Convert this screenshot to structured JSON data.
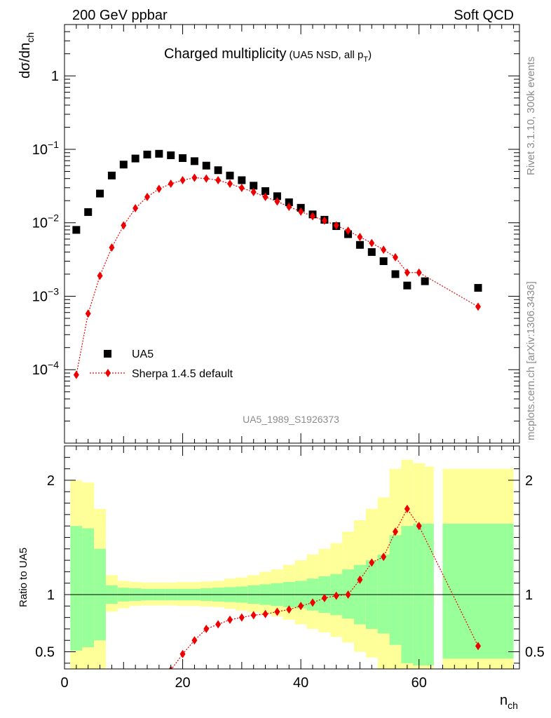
{
  "header": {
    "energy_label": "200 GeV ppbar",
    "category_label": "Soft QCD"
  },
  "side": {
    "rivet_label": "Rivet 3.1.10,  300k events",
    "source_label": "mcplots.cern.ch [arXiv:1306.3436]"
  },
  "chart_data": {
    "type": "scatter",
    "title": "Charged multiplicity",
    "subtitle": "(UA5 NSD, all p",
    "subtitle_sub": "T",
    "subtitle_close": ")",
    "analysis_id": "UA5_1989_S1926373",
    "xlabel_main": "n",
    "xlabel_sub": "ch",
    "ylabel_main": "dσ/dn",
    "ylabel_sub": "ch",
    "ratio_ylabel": "Ratio to UA5",
    "xlim": [
      0,
      77
    ],
    "ylim_log": [
      1e-05,
      5
    ],
    "ratio_ylim": [
      0.35,
      2.3
    ],
    "x_ticks": [
      0,
      20,
      40,
      60
    ],
    "x_tick_labels": [
      "0",
      "20",
      "40",
      "60"
    ],
    "y_ticks": [
      {
        "value": 0.0001,
        "base": "10",
        "exp": "−4"
      },
      {
        "value": 0.001,
        "base": "10",
        "exp": "−3"
      },
      {
        "value": 0.01,
        "base": "10",
        "exp": "−2"
      },
      {
        "value": 0.1,
        "base": "10",
        "exp": "−1"
      },
      {
        "value": 1,
        "label": "1"
      }
    ],
    "ratio_ticks": [
      {
        "value": 0.5,
        "label": "0.5"
      },
      {
        "value": 1,
        "label": "1"
      },
      {
        "value": 2,
        "label": "2"
      }
    ],
    "legend_position": "bottom-left",
    "series": [
      {
        "name": "UA5",
        "style": "square-marker",
        "color": "#000000",
        "x": [
          2,
          4,
          6,
          8,
          10,
          12,
          14,
          16,
          18,
          20,
          22,
          24,
          26,
          28,
          30,
          32,
          34,
          36,
          38,
          40,
          42,
          44,
          46,
          48,
          50,
          52,
          54,
          56,
          58,
          61,
          70
        ],
        "y": [
          0.008,
          0.014,
          0.025,
          0.044,
          0.062,
          0.075,
          0.085,
          0.087,
          0.083,
          0.076,
          0.069,
          0.06,
          0.052,
          0.044,
          0.038,
          0.032,
          0.027,
          0.023,
          0.019,
          0.016,
          0.013,
          0.011,
          0.009,
          0.007,
          0.005,
          0.004,
          0.003,
          0.002,
          0.0014,
          0.0016,
          0.0013
        ]
      },
      {
        "name": "Sherpa 1.4.5 default",
        "style": "diamond-dotted-line",
        "color": "#ee0000",
        "x": [
          2,
          4,
          6,
          8,
          10,
          12,
          14,
          16,
          18,
          20,
          22,
          24,
          26,
          28,
          30,
          32,
          34,
          36,
          38,
          40,
          42,
          44,
          46,
          48,
          50,
          52,
          54,
          56,
          58,
          60,
          70
        ],
        "y": [
          8.5e-05,
          0.00058,
          0.0019,
          0.0046,
          0.0092,
          0.0158,
          0.0225,
          0.029,
          0.034,
          0.038,
          0.041,
          0.04,
          0.038,
          0.034,
          0.0298,
          0.0262,
          0.0225,
          0.0195,
          0.0165,
          0.0142,
          0.0123,
          0.0107,
          0.0092,
          0.0078,
          0.0064,
          0.0053,
          0.0043,
          0.0034,
          0.0021,
          0.0021,
          0.00072
        ]
      }
    ],
    "ratio": {
      "x": [
        18,
        20,
        22,
        24,
        26,
        28,
        30,
        32,
        34,
        36,
        38,
        40,
        42,
        44,
        46,
        48,
        50,
        52,
        54,
        56,
        58,
        60,
        70
      ],
      "values": [
        0.34,
        0.48,
        0.6,
        0.7,
        0.74,
        0.78,
        0.8,
        0.82,
        0.83,
        0.85,
        0.87,
        0.9,
        0.93,
        0.97,
        0.99,
        1.0,
        1.13,
        1.28,
        1.33,
        1.55,
        1.75,
        1.6,
        0.55
      ]
    },
    "uncertainty_bands": [
      {
        "x0": 1,
        "x1": 3,
        "y_lo": 0.51,
        "y_hi": 1.6,
        "y_lo_outer": 0.35,
        "y_hi_outer": 2.0
      },
      {
        "x0": 3,
        "x1": 5,
        "y_lo": 0.54,
        "y_hi": 1.58,
        "y_lo_outer": 0.35,
        "y_hi_outer": 1.98
      },
      {
        "x0": 5,
        "x1": 7,
        "y_lo": 0.6,
        "y_hi": 1.4,
        "y_lo_outer": 0.35,
        "y_hi_outer": 1.75
      },
      {
        "x0": 7,
        "x1": 9,
        "y_lo": 0.92,
        "y_hi": 1.08,
        "y_lo_outer": 0.85,
        "y_hi_outer": 1.17
      },
      {
        "x0": 9,
        "x1": 11,
        "y_lo": 0.94,
        "y_hi": 1.06,
        "y_lo_outer": 0.88,
        "y_hi_outer": 1.12
      },
      {
        "x0": 11,
        "x1": 13,
        "y_lo": 0.945,
        "y_hi": 1.055,
        "y_lo_outer": 0.9,
        "y_hi_outer": 1.11
      },
      {
        "x0": 13,
        "x1": 15,
        "y_lo": 0.95,
        "y_hi": 1.05,
        "y_lo_outer": 0.905,
        "y_hi_outer": 1.105
      },
      {
        "x0": 15,
        "x1": 17,
        "y_lo": 0.95,
        "y_hi": 1.05,
        "y_lo_outer": 0.905,
        "y_hi_outer": 1.105
      },
      {
        "x0": 17,
        "x1": 19,
        "y_lo": 0.95,
        "y_hi": 1.05,
        "y_lo_outer": 0.905,
        "y_hi_outer": 1.105
      },
      {
        "x0": 19,
        "x1": 21,
        "y_lo": 0.95,
        "y_hi": 1.05,
        "y_lo_outer": 0.9,
        "y_hi_outer": 1.11
      },
      {
        "x0": 21,
        "x1": 23,
        "y_lo": 0.95,
        "y_hi": 1.05,
        "y_lo_outer": 0.9,
        "y_hi_outer": 1.11
      },
      {
        "x0": 23,
        "x1": 25,
        "y_lo": 0.945,
        "y_hi": 1.055,
        "y_lo_outer": 0.895,
        "y_hi_outer": 1.115
      },
      {
        "x0": 25,
        "x1": 27,
        "y_lo": 0.94,
        "y_hi": 1.06,
        "y_lo_outer": 0.89,
        "y_hi_outer": 1.12
      },
      {
        "x0": 27,
        "x1": 29,
        "y_lo": 0.935,
        "y_hi": 1.065,
        "y_lo_outer": 0.875,
        "y_hi_outer": 1.14
      },
      {
        "x0": 29,
        "x1": 31,
        "y_lo": 0.93,
        "y_hi": 1.07,
        "y_lo_outer": 0.86,
        "y_hi_outer": 1.15
      },
      {
        "x0": 31,
        "x1": 33,
        "y_lo": 0.92,
        "y_hi": 1.08,
        "y_lo_outer": 0.845,
        "y_hi_outer": 1.17
      },
      {
        "x0": 33,
        "x1": 35,
        "y_lo": 0.91,
        "y_hi": 1.09,
        "y_lo_outer": 0.83,
        "y_hi_outer": 1.2
      },
      {
        "x0": 35,
        "x1": 37,
        "y_lo": 0.9,
        "y_hi": 1.1,
        "y_lo_outer": 0.81,
        "y_hi_outer": 1.22
      },
      {
        "x0": 37,
        "x1": 39,
        "y_lo": 0.89,
        "y_hi": 1.11,
        "y_lo_outer": 0.78,
        "y_hi_outer": 1.26
      },
      {
        "x0": 39,
        "x1": 41,
        "y_lo": 0.88,
        "y_hi": 1.12,
        "y_lo_outer": 0.74,
        "y_hi_outer": 1.3
      },
      {
        "x0": 41,
        "x1": 43,
        "y_lo": 0.86,
        "y_hi": 1.14,
        "y_lo_outer": 0.7,
        "y_hi_outer": 1.35
      },
      {
        "x0": 43,
        "x1": 45,
        "y_lo": 0.84,
        "y_hi": 1.16,
        "y_lo_outer": 0.67,
        "y_hi_outer": 1.4
      },
      {
        "x0": 45,
        "x1": 47,
        "y_lo": 0.82,
        "y_hi": 1.18,
        "y_lo_outer": 0.63,
        "y_hi_outer": 1.45
      },
      {
        "x0": 47,
        "x1": 49,
        "y_lo": 0.79,
        "y_hi": 1.22,
        "y_lo_outer": 0.58,
        "y_hi_outer": 1.55
      },
      {
        "x0": 49,
        "x1": 51,
        "y_lo": 0.74,
        "y_hi": 1.26,
        "y_lo_outer": 0.5,
        "y_hi_outer": 1.65
      },
      {
        "x0": 51,
        "x1": 53,
        "y_lo": 0.7,
        "y_hi": 1.3,
        "y_lo_outer": 0.45,
        "y_hi_outer": 1.75
      },
      {
        "x0": 53,
        "x1": 55,
        "y_lo": 0.66,
        "y_hi": 1.35,
        "y_lo_outer": 0.35,
        "y_hi_outer": 1.85
      },
      {
        "x0": 55,
        "x1": 57,
        "y_lo": 0.56,
        "y_hi": 1.52,
        "y_lo_outer": 0.35,
        "y_hi_outer": 2.1
      },
      {
        "x0": 57,
        "x1": 59,
        "y_lo": 0.4,
        "y_hi": 1.6,
        "y_lo_outer": 0.35,
        "y_hi_outer": 2.18
      },
      {
        "x0": 59,
        "x1": 61,
        "y_lo": 0.38,
        "y_hi": 1.62,
        "y_lo_outer": 0.35,
        "y_hi_outer": 2.15
      },
      {
        "x0": 61,
        "x1": 62.5,
        "y_lo": 0.38,
        "y_hi": 1.62,
        "y_lo_outer": 0.35,
        "y_hi_outer": 2.12
      },
      {
        "x0": 64,
        "x1": 76,
        "y_lo": 0.44,
        "y_hi": 1.62,
        "y_lo_outer": 0.35,
        "y_hi_outer": 2.1
      }
    ],
    "band_colors": {
      "inner": "#99ff99",
      "outer": "#ffff99"
    }
  }
}
